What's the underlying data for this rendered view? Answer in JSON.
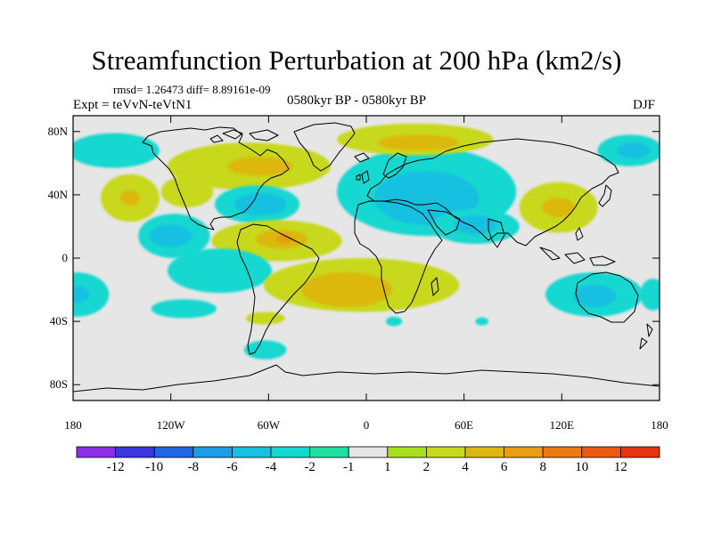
{
  "title": "Streamfunction Perturbation at 200 hPa (km2/s)",
  "stats": "rmsd= 1.26473  diff= 8.89161e-09",
  "expt": "Expt = teVvN-teVtN1",
  "period": "0580kyr BP - 0580kyr BP",
  "season": "DJF",
  "map": {
    "lon_range": [
      -180,
      180
    ],
    "lat_range": [
      -90,
      90
    ],
    "y_ticks": [
      {
        "lat": 80,
        "label": "80N"
      },
      {
        "lat": 40,
        "label": "40N"
      },
      {
        "lat": 0,
        "label": "0"
      },
      {
        "lat": -40,
        "label": "40S"
      },
      {
        "lat": -80,
        "label": "80S"
      }
    ],
    "x_ticks": [
      {
        "lon": -180,
        "label": "180"
      },
      {
        "lon": -120,
        "label": "120W"
      },
      {
        "lon": -60,
        "label": "60W"
      },
      {
        "lon": 0,
        "label": "0"
      },
      {
        "lon": 60,
        "label": "60E"
      },
      {
        "lon": 120,
        "label": "120E"
      },
      {
        "lon": 180,
        "label": "180"
      }
    ],
    "background_color": "#e6e6e6",
    "regions": [
      {
        "level": "-2",
        "lon": 162,
        "lat": 68,
        "rlon": 20,
        "rlat": 10
      },
      {
        "level": "-4",
        "lon": 164,
        "lat": 68,
        "rlon": 10,
        "rlat": 5
      },
      {
        "level": "-2",
        "lon": -155,
        "lat": 68,
        "rlon": 28,
        "rlat": 11
      },
      {
        "level": "2",
        "lon": -145,
        "lat": 38,
        "rlon": 18,
        "rlat": 15
      },
      {
        "level": "4",
        "lon": -145,
        "lat": 38,
        "rlon": 6,
        "rlat": 5
      },
      {
        "level": "-2",
        "lon": -118,
        "lat": 14,
        "rlon": 22,
        "rlat": 14
      },
      {
        "level": "-4",
        "lon": -120,
        "lat": 14,
        "rlon": 13,
        "rlat": 7
      },
      {
        "level": "-2",
        "lon": -178,
        "lat": -23,
        "rlon": 20,
        "rlat": 14
      },
      {
        "level": "-4",
        "lon": -178,
        "lat": -23,
        "rlon": 8,
        "rlat": 5
      },
      {
        "level": "-2",
        "lon": 176,
        "lat": -23,
        "rlon": 8,
        "rlat": 10
      },
      {
        "level": "-2",
        "lon": -112,
        "lat": -32,
        "rlon": 20,
        "rlat": 6
      },
      {
        "level": "2",
        "lon": -110,
        "lat": 42,
        "rlon": 16,
        "rlat": 10
      },
      {
        "level": "2",
        "lon": -72,
        "lat": 58,
        "rlon": 50,
        "rlat": 15
      },
      {
        "level": "4",
        "lon": -65,
        "lat": 58,
        "rlon": 20,
        "rlat": 6
      },
      {
        "level": "-2",
        "lon": -67,
        "lat": 34,
        "rlon": 26,
        "rlat": 12
      },
      {
        "level": "-4",
        "lon": -65,
        "lat": 34,
        "rlon": 16,
        "rlat": 7
      },
      {
        "level": "2",
        "lon": -55,
        "lat": 11,
        "rlon": 40,
        "rlat": 13
      },
      {
        "level": "4",
        "lon": -52,
        "lat": 12,
        "rlon": 16,
        "rlat": 6
      },
      {
        "level": "6",
        "lon": -50,
        "lat": 12,
        "rlon": 5,
        "rlat": 3
      },
      {
        "level": "-2",
        "lon": -90,
        "lat": -8,
        "rlon": 32,
        "rlat": 14
      },
      {
        "level": "2",
        "lon": -3,
        "lat": -17,
        "rlon": 60,
        "rlat": 17
      },
      {
        "level": "4",
        "lon": -12,
        "lat": -20,
        "rlon": 28,
        "rlat": 11
      },
      {
        "level": "-2",
        "lon": 37,
        "lat": 42,
        "rlon": 55,
        "rlat": 28
      },
      {
        "level": "-4",
        "lon": 37,
        "lat": 38,
        "rlon": 32,
        "rlat": 17
      },
      {
        "level": "2",
        "lon": 30,
        "lat": 75,
        "rlon": 48,
        "rlat": 10
      },
      {
        "level": "4",
        "lon": 32,
        "lat": 73,
        "rlon": 25,
        "rlat": 5
      },
      {
        "level": "-2",
        "lon": 67,
        "lat": 20,
        "rlon": 27,
        "rlat": 11
      },
      {
        "level": "-4",
        "lon": 67,
        "lat": 21,
        "rlon": 13,
        "rlat": 6
      },
      {
        "level": "2",
        "lon": 118,
        "lat": 32,
        "rlon": 24,
        "rlat": 16
      },
      {
        "level": "4",
        "lon": 118,
        "lat": 32,
        "rlon": 10,
        "rlat": 6
      },
      {
        "level": "-2",
        "lon": 140,
        "lat": -23,
        "rlon": 30,
        "rlat": 14
      },
      {
        "level": "-4",
        "lon": 140,
        "lat": -24,
        "rlon": 13,
        "rlat": 7
      },
      {
        "level": "2",
        "lon": -62,
        "lat": -38,
        "rlon": 12,
        "rlat": 4
      },
      {
        "level": "-2",
        "lon": -62,
        "lat": -58,
        "rlon": 13,
        "rlat": 6
      },
      {
        "level": "-2",
        "lon": 17,
        "lat": -40,
        "rlon": 5,
        "rlat": 3
      },
      {
        "level": "-2",
        "lon": 71,
        "lat": -40,
        "rlon": 4,
        "rlat": 2.5
      }
    ]
  },
  "colorbar": {
    "colors": [
      "#8b2ee8",
      "#3a36e0",
      "#1f66e6",
      "#1c9de6",
      "#15c0e0",
      "#14d8d0",
      "#1fe0a0",
      "#e6e6e6",
      "#a8e01e",
      "#c8d81e",
      "#dcb80e",
      "#e89e10",
      "#ec7a10",
      "#ec5a12",
      "#e83410"
    ],
    "labels": [
      "-12",
      "-10",
      "-8",
      "-6",
      "-4",
      "-2",
      "-1",
      "1",
      "2",
      "4",
      "6",
      "8",
      "10",
      "12"
    ]
  }
}
